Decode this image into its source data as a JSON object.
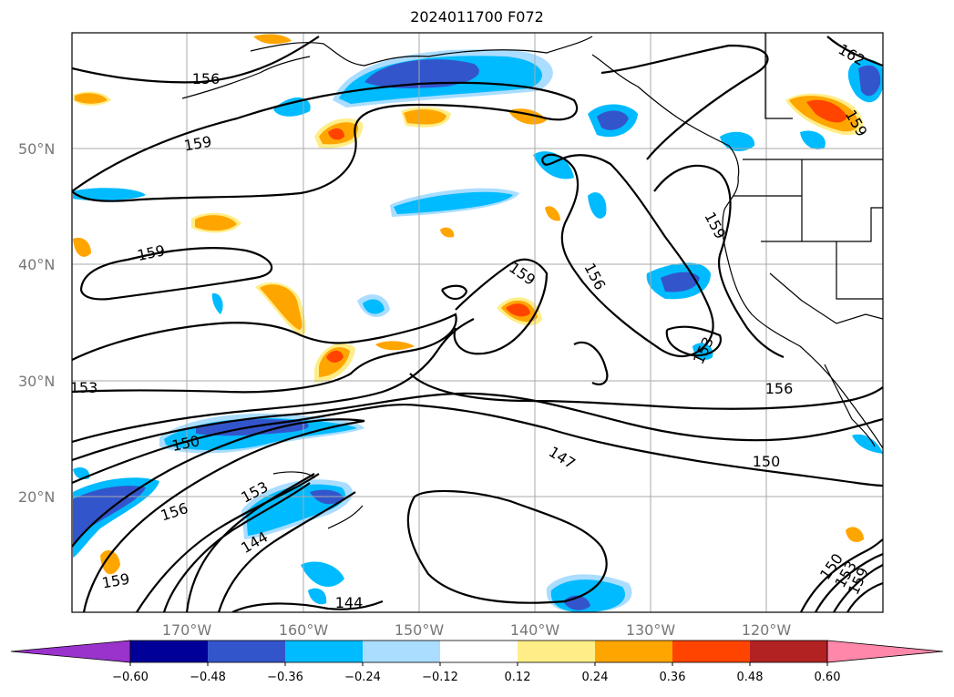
{
  "title": "2024011700 F072",
  "lat_labels": [
    "50°N",
    "40°N",
    "30°N",
    "20°N"
  ],
  "lon_labels": [
    "170°W",
    "160°W",
    "150°W",
    "140°W",
    "130°W",
    "120°W"
  ],
  "contour_labels": [
    "156",
    "159",
    "159",
    "153",
    "150",
    "153",
    "156",
    "144",
    "159",
    "144",
    "159",
    "156",
    "159",
    "153",
    "156",
    "147",
    "150",
    "162",
    "159",
    "150",
    "153",
    "159"
  ],
  "colorbar": {
    "ticks": [
      "−0.60",
      "−0.48",
      "−0.36",
      "−0.24",
      "−0.12",
      "0.12",
      "0.24",
      "0.36",
      "0.48",
      "0.60"
    ],
    "colors": [
      "#9933cc",
      "#000099",
      "#3355cc",
      "#00bbff",
      "#aaddff",
      "#ffffff",
      "#ffee88",
      "#ffa500",
      "#ff4400",
      "#b22222",
      "#ff88aa"
    ]
  }
}
